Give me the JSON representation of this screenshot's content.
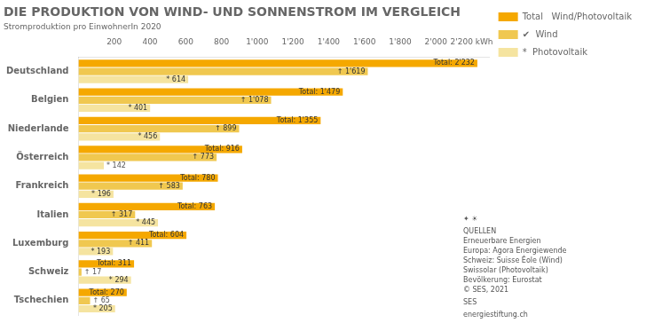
{
  "chart_data": {
    "type": "bar",
    "orientation": "horizontal",
    "title": "DIE PRODUKTION VON WIND- UND SONNENSTROM IM VERGLEICH",
    "subtitle": "Stromproduktion pro EinwohnerIn 2020",
    "categories": [
      "Deutschland",
      "Belgien",
      "Niederlande",
      "Österreich",
      "Frankreich",
      "Italien",
      "Luxemburg",
      "Schweiz",
      "Tschechien"
    ],
    "series": [
      {
        "name": "Total   Wind/Photovoltaik",
        "color": "#F5A800",
        "values": [
          2232,
          1479,
          1355,
          916,
          780,
          763,
          604,
          311,
          270
        ],
        "value_labels": [
          "Total: 2'232",
          "Total: 1'479",
          "Total: 1'355",
          "Total: 916",
          "Total: 780",
          "Total: 763",
          "Total: 604",
          "Total: 311",
          "Total: 270"
        ]
      },
      {
        "name": "✔  Wind",
        "color": "#F0C850",
        "values": [
          1619,
          1078,
          899,
          773,
          583,
          317,
          411,
          17,
          65
        ],
        "value_labels": [
          "↑ 1'619",
          "↑ 1'078",
          "↑ 899",
          "↑ 773",
          "↑ 583",
          "↑ 317",
          "↑ 411",
          "↑ 17",
          "↑ 65"
        ]
      },
      {
        "name": "*  Photovoltaik",
        "color": "#F5E4A0",
        "values": [
          614,
          401,
          456,
          142,
          196,
          445,
          193,
          294,
          205
        ],
        "value_labels": [
          "* 614",
          "* 401",
          "* 456",
          "* 142",
          "* 196",
          "* 445",
          "* 193",
          "* 294",
          "* 205"
        ]
      }
    ],
    "xlim": [
      0,
      2300
    ],
    "xticks": [
      200,
      400,
      600,
      800,
      {
        "value": 1000,
        "label": "1'000"
      },
      {
        "value": 1200,
        "label": "1'200"
      },
      {
        "value": 1400,
        "label": "1'400"
      },
      {
        "value": 1600,
        "label": "1'600"
      },
      {
        "value": 1800,
        "label": "1'800"
      },
      {
        "value": 2000,
        "label": "2'000"
      },
      {
        "value": 2200,
        "label": "2'200 kWh"
      }
    ],
    "grid": false,
    "legend": "right",
    "data_labels": true,
    "annotations": [
      "✦ ☀",
      "QUELLEN\nErneuerbare Energien\nEuropa: Agora Energiewende\nSchweiz: Suisse Éole (Wind)\nSwissolar (Photovoltaik)\nBevölkerung: Eurostat\n© SES, 2021",
      "SES",
      "energiestiftung.ch"
    ]
  }
}
